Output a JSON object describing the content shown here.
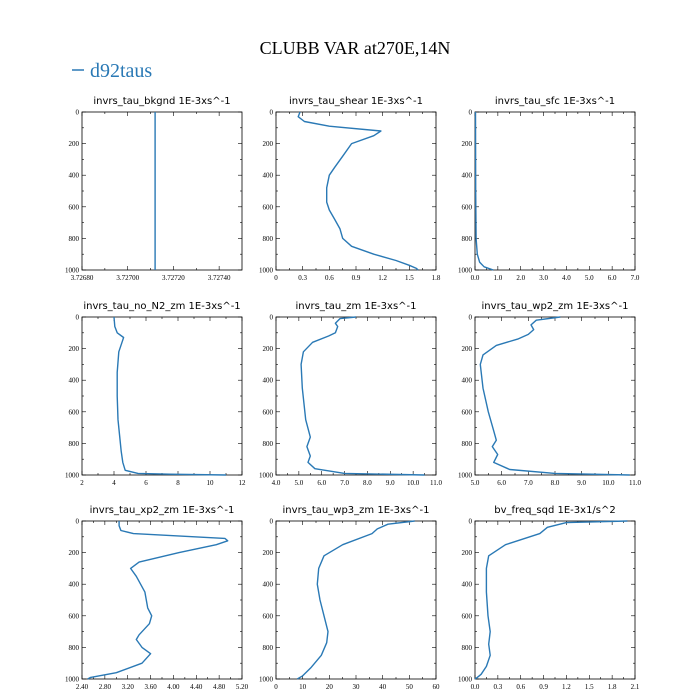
{
  "figure": {
    "title": "CLUBB VAR at270E,14N",
    "legend": "d92taus",
    "line_color": "#2a79b5"
  },
  "chart_data": [
    {
      "type": "line",
      "title": "invrs_tau_bkgnd   1E-3xs^-1",
      "xlim": [
        3.7268,
        3.7275
      ],
      "xticks": [
        "3.72680",
        "3.72700",
        "3.72720",
        "3.72740"
      ],
      "xtick_values": [
        3.7268,
        3.727,
        3.7272,
        3.7274
      ],
      "ylim": [
        1000,
        0
      ],
      "yticks": [
        0,
        200,
        400,
        600,
        800,
        1000
      ],
      "series": [
        {
          "x": [
            3.72712,
            3.72712
          ],
          "y": [
            0,
            1000
          ]
        }
      ]
    },
    {
      "type": "line",
      "title": "invrs_tau_shear   1E-3xs^-1",
      "xlim": [
        0.0,
        1.8
      ],
      "xticks": [
        "0",
        "0.3",
        "0.6",
        "0.9",
        "1.2",
        "1.5",
        "1.8"
      ],
      "xtick_values": [
        0,
        0.3,
        0.6,
        0.9,
        1.2,
        1.5,
        1.8
      ],
      "ylim": [
        1000,
        0
      ],
      "yticks": [
        0,
        200,
        400,
        600,
        800,
        1000
      ],
      "series": [
        {
          "x": [
            0.27,
            0.25,
            0.32,
            0.6,
            1.18,
            1.1,
            0.85,
            0.75,
            0.66,
            0.6,
            0.57,
            0.57,
            0.6,
            0.66,
            0.72,
            0.75,
            0.85,
            1.1,
            1.35,
            1.5,
            1.58,
            1.6
          ],
          "y": [
            0,
            30,
            60,
            90,
            120,
            150,
            200,
            280,
            350,
            400,
            480,
            570,
            620,
            680,
            740,
            800,
            850,
            900,
            940,
            970,
            990,
            1000
          ]
        }
      ]
    },
    {
      "type": "line",
      "title": "invrs_tau_sfc   1E-3xs^-1",
      "xlim": [
        0.0,
        7.0
      ],
      "xticks": [
        "0.0",
        "1.0",
        "2.0",
        "3.0",
        "4.0",
        "5.0",
        "6.0",
        "7.0"
      ],
      "xtick_values": [
        0,
        1,
        2,
        3,
        4,
        5,
        6,
        7
      ],
      "ylim": [
        1000,
        0
      ],
      "yticks": [
        0,
        200,
        400,
        600,
        800,
        1000
      ],
      "series": [
        {
          "x": [
            0.02,
            0.03,
            0.05,
            0.1,
            0.2,
            0.4,
            0.8
          ],
          "y": [
            0,
            500,
            800,
            900,
            950,
            980,
            1000
          ]
        }
      ]
    },
    {
      "type": "line",
      "title": "invrs_tau_no_N2_zm   1E-3xs^-1",
      "xlim": [
        2,
        12
      ],
      "xticks": [
        "2",
        "4",
        "6",
        "8",
        "10",
        "12"
      ],
      "xtick_values": [
        2,
        4,
        6,
        8,
        10,
        12
      ],
      "ylim": [
        1000,
        0
      ],
      "yticks": [
        0,
        200,
        400,
        600,
        800,
        1000
      ],
      "series": [
        {
          "x": [
            4.0,
            4.05,
            4.2,
            4.6,
            4.5,
            4.3,
            4.2,
            4.2,
            4.25,
            4.35,
            4.45,
            4.55,
            4.7,
            5.5,
            7.5,
            11.0
          ],
          "y": [
            0,
            60,
            100,
            130,
            160,
            220,
            350,
            500,
            650,
            750,
            850,
            920,
            970,
            990,
            995,
            1000
          ]
        }
      ]
    },
    {
      "type": "line",
      "title": "invrs_tau_zm   1E-3xs^-1",
      "xlim": [
        4.0,
        11.0
      ],
      "xticks": [
        "4.0",
        "5.0",
        "6.0",
        "7.0",
        "8.0",
        "9.0",
        "10.0",
        "11.0"
      ],
      "xtick_values": [
        4,
        5,
        6,
        7,
        8,
        9,
        10,
        11
      ],
      "ylim": [
        1000,
        0
      ],
      "yticks": [
        0,
        200,
        400,
        600,
        800,
        1000
      ],
      "series": [
        {
          "x": [
            7.5,
            6.8,
            6.6,
            6.7,
            6.6,
            6.3,
            5.6,
            5.2,
            5.1,
            5.15,
            5.3,
            5.5,
            5.35,
            5.5,
            5.4,
            5.7,
            7.0,
            10.5
          ],
          "y": [
            0,
            10,
            40,
            60,
            100,
            120,
            160,
            220,
            300,
            450,
            650,
            760,
            820,
            880,
            920,
            960,
            990,
            1000
          ]
        }
      ]
    },
    {
      "type": "line",
      "title": "invrs_tau_wp2_zm   1E-3xs^-1",
      "xlim": [
        5.0,
        11.0
      ],
      "xticks": [
        "5.0",
        "6.0",
        "7.0",
        "8.0",
        "9.0",
        "10.0",
        "11.0"
      ],
      "xtick_values": [
        5,
        6,
        7,
        8,
        9,
        10,
        11
      ],
      "ylim": [
        1000,
        0
      ],
      "yticks": [
        0,
        200,
        400,
        600,
        800,
        1000
      ],
      "series": [
        {
          "x": [
            8.2,
            7.3,
            7.1,
            7.2,
            7.0,
            6.6,
            5.8,
            5.3,
            5.2,
            5.3,
            5.5,
            5.7,
            5.8,
            5.65,
            5.85,
            5.7,
            6.3,
            8.0,
            10.8
          ],
          "y": [
            0,
            20,
            50,
            80,
            110,
            140,
            180,
            240,
            300,
            450,
            600,
            720,
            780,
            820,
            870,
            920,
            965,
            990,
            1000
          ]
        }
      ]
    },
    {
      "type": "line",
      "title": "invrs_tau_xp2_zm   1E-3xs^-1",
      "xlim": [
        2.4,
        5.2
      ],
      "xticks": [
        "2.40",
        "2.80",
        "3.20",
        "3.60",
        "4.00",
        "4.40",
        "4.80",
        "5.20"
      ],
      "xtick_values": [
        2.4,
        2.8,
        3.2,
        3.6,
        4.0,
        4.4,
        4.8,
        5.2
      ],
      "ylim": [
        1000,
        0
      ],
      "yticks": [
        0,
        200,
        400,
        600,
        800,
        1000
      ],
      "series": [
        {
          "x": [
            3.05,
            3.05,
            3.08,
            3.3,
            4.9,
            4.95,
            4.75,
            4.1,
            3.4,
            3.25,
            3.35,
            3.5,
            3.55,
            3.62,
            3.58,
            3.4,
            3.35,
            3.45,
            3.6,
            3.45,
            3.0,
            2.55,
            2.5
          ],
          "y": [
            0,
            30,
            60,
            80,
            110,
            125,
            150,
            200,
            260,
            300,
            350,
            450,
            550,
            600,
            650,
            720,
            750,
            800,
            840,
            900,
            960,
            990,
            1000
          ]
        }
      ]
    },
    {
      "type": "line",
      "title": "invrs_tau_wp3_zm   1E-3xs^-1",
      "xlim": [
        0,
        60
      ],
      "xticks": [
        "0",
        "10",
        "20",
        "30",
        "40",
        "50",
        "60"
      ],
      "xtick_values": [
        0,
        10,
        20,
        30,
        40,
        50,
        60
      ],
      "ylim": [
        1000,
        0
      ],
      "yticks": [
        0,
        200,
        400,
        600,
        800,
        1000
      ],
      "series": [
        {
          "x": [
            52,
            42,
            38,
            36,
            25,
            18,
            16,
            15.5,
            16.5,
            18,
            19.5,
            19,
            17,
            13,
            10,
            8
          ],
          "y": [
            0,
            20,
            50,
            80,
            150,
            220,
            300,
            400,
            500,
            600,
            700,
            770,
            850,
            930,
            980,
            1000
          ]
        }
      ]
    },
    {
      "type": "line",
      "title": "bv_freq_sqd   1E-3x1/s^2",
      "xlim": [
        0.0,
        2.1
      ],
      "xticks": [
        "0.0",
        "0.3",
        "0.6",
        "0.9",
        "1.2",
        "1.5",
        "1.8",
        "2.1"
      ],
      "xtick_values": [
        0,
        0.3,
        0.6,
        0.9,
        1.2,
        1.5,
        1.8,
        2.1
      ],
      "ylim": [
        1000,
        0
      ],
      "yticks": [
        0,
        200,
        400,
        600,
        800,
        1000
      ],
      "series": [
        {
          "x": [
            2.0,
            1.2,
            0.95,
            0.85,
            0.4,
            0.18,
            0.15,
            0.15,
            0.17,
            0.2,
            0.18,
            0.2,
            0.15,
            0.08,
            0.03,
            0.0
          ],
          "y": [
            0,
            10,
            40,
            80,
            150,
            220,
            300,
            450,
            600,
            700,
            780,
            850,
            920,
            970,
            990,
            1000
          ]
        }
      ]
    }
  ]
}
